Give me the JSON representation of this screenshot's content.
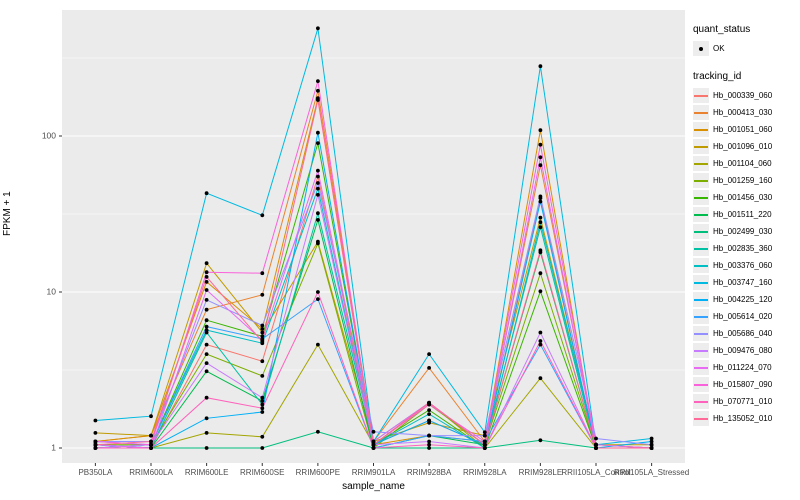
{
  "figure": {
    "background": "#FFFFFF",
    "panel_background": "#EBEBEB",
    "grid_color": "#FFFFFF",
    "tick_label_color": "#4D4D4D",
    "point_color": "#000000"
  },
  "legend": {
    "quant_status": {
      "title": "quant_status",
      "items": [
        {
          "label": "OK",
          "marker": "black-point"
        }
      ]
    },
    "tracking_id": {
      "title": "tracking_id"
    }
  },
  "chart_data": {
    "type": "line",
    "title": "",
    "xlabel": "sample_name",
    "ylabel": "FPKM + 1",
    "y_scale": "log10",
    "y_ticks": [
      1,
      10,
      100
    ],
    "y_minor_ticks": [
      3.162,
      31.62,
      316.2
    ],
    "ylim": [
      0.8,
      650
    ],
    "grid": true,
    "legend_position": "right",
    "marker": "point",
    "categories": [
      "PB350LA",
      "RRIM600LA",
      "RRIM600LE",
      "RRIM600SE",
      "RRIM600PE",
      "RRIM901LA",
      "RRIM928BA",
      "RRIM928LA",
      "RRIM928LE",
      "RRII105LA_Control",
      "RRII105LA_Stressed"
    ],
    "series": [
      {
        "name": "Hb_000339_060",
        "color": "#F8766D",
        "values": [
          1.05,
          1.0,
          4.6,
          3.6,
          55,
          1.05,
          1.5,
          1.05,
          40,
          1.0,
          1.0
        ]
      },
      {
        "name": "Hb_000413_030",
        "color": "#EA8331",
        "values": [
          1.1,
          1.2,
          7.7,
          9.6,
          195,
          1.1,
          3.26,
          1.1,
          65,
          1.05,
          1.0
        ]
      },
      {
        "name": "Hb_001051_060",
        "color": "#D89000",
        "values": [
          1.1,
          1.2,
          11.6,
          5.8,
          175,
          1.05,
          1.2,
          1.1,
          109,
          1.0,
          1.0
        ]
      },
      {
        "name": "Hb_001096_010",
        "color": "#C09B00",
        "values": [
          1.25,
          1.2,
          15.3,
          5.5,
          21,
          1.1,
          1.45,
          1.2,
          30,
          1.05,
          1.05
        ]
      },
      {
        "name": "Hb_001104_060",
        "color": "#A3A500",
        "values": [
          1.0,
          1.0,
          1.25,
          1.18,
          4.6,
          1.05,
          1.95,
          1.0,
          2.8,
          1.0,
          1.0
        ]
      },
      {
        "name": "Hb_001259_160",
        "color": "#7CAE00",
        "values": [
          1.05,
          1.05,
          4.0,
          2.9,
          20.5,
          1.0,
          1.9,
          1.05,
          13.2,
          1.0,
          1.0
        ]
      },
      {
        "name": "Hb_001456_030",
        "color": "#39B600",
        "values": [
          1.0,
          1.05,
          6.6,
          5.2,
          90,
          1.05,
          1.75,
          1.0,
          10.1,
          1.0,
          1.0
        ]
      },
      {
        "name": "Hb_001511_220",
        "color": "#00BB4E",
        "values": [
          1.05,
          1.0,
          3.1,
          2.0,
          29,
          1.0,
          1.2,
          1.05,
          18,
          1.0,
          1.0
        ]
      },
      {
        "name": "Hb_002499_030",
        "color": "#00BF7D",
        "values": [
          1.0,
          1.0,
          1.0,
          1.0,
          1.27,
          1.0,
          1.0,
          1.0,
          1.12,
          1.0,
          1.0
        ]
      },
      {
        "name": "Hb_002835_360",
        "color": "#00C1A3",
        "values": [
          1.05,
          1.0,
          5.5,
          1.9,
          32,
          1.1,
          1.95,
          1.05,
          26,
          1.0,
          1.0
        ]
      },
      {
        "name": "Hb_003376_060",
        "color": "#00BFC4",
        "values": [
          1.0,
          1.05,
          5.7,
          4.7,
          46,
          1.05,
          1.65,
          1.0,
          28,
          1.05,
          1.0
        ]
      },
      {
        "name": "Hb_003747_160",
        "color": "#00BAE0",
        "values": [
          1.5,
          1.6,
          43,
          31,
          490,
          1.1,
          4.0,
          1.26,
          280,
          1.05,
          1.15
        ]
      },
      {
        "name": "Hb_004225_120",
        "color": "#00B0F6",
        "values": [
          1.05,
          1.0,
          1.55,
          1.7,
          105,
          1.05,
          1.5,
          1.05,
          38,
          1.0,
          1.1
        ]
      },
      {
        "name": "Hb_005614_020",
        "color": "#35A2FF",
        "values": [
          1.1,
          1.05,
          6.0,
          5.0,
          9.0,
          1.0,
          1.2,
          1.1,
          4.6,
          1.0,
          1.0
        ]
      },
      {
        "name": "Hb_005686_040",
        "color": "#9590FF",
        "values": [
          1.1,
          1.1,
          8.9,
          6.1,
          50,
          1.27,
          1.2,
          1.2,
          41,
          1.15,
          1.05
        ]
      },
      {
        "name": "Hb_009476_080",
        "color": "#C77CFF",
        "values": [
          1.0,
          1.05,
          3.5,
          2.1,
          42,
          1.05,
          1.1,
          1.0,
          5.5,
          1.0,
          1.0
        ]
      },
      {
        "name": "Hb_011224_070",
        "color": "#E76BF3",
        "values": [
          1.05,
          1.0,
          10.3,
          4.9,
          60,
          1.1,
          1.95,
          1.05,
          73,
          1.0,
          1.0
        ]
      },
      {
        "name": "Hb_015807_090",
        "color": "#FA62DB",
        "values": [
          1.1,
          1.05,
          13.4,
          13.2,
          225,
          1.05,
          1.9,
          1.1,
          88,
          1.05,
          1.0
        ]
      },
      {
        "name": "Hb_070771_010",
        "color": "#FF62BC",
        "values": [
          1.0,
          1.0,
          2.1,
          1.8,
          10,
          1.0,
          1.05,
          1.0,
          4.85,
          1.0,
          1.0
        ]
      },
      {
        "name": "Hb_135052_010",
        "color": "#FF6A98",
        "values": [
          1.05,
          1.1,
          12.5,
          4.8,
          170,
          1.05,
          1.95,
          1.05,
          18.5,
          1.0,
          1.0
        ]
      }
    ]
  }
}
